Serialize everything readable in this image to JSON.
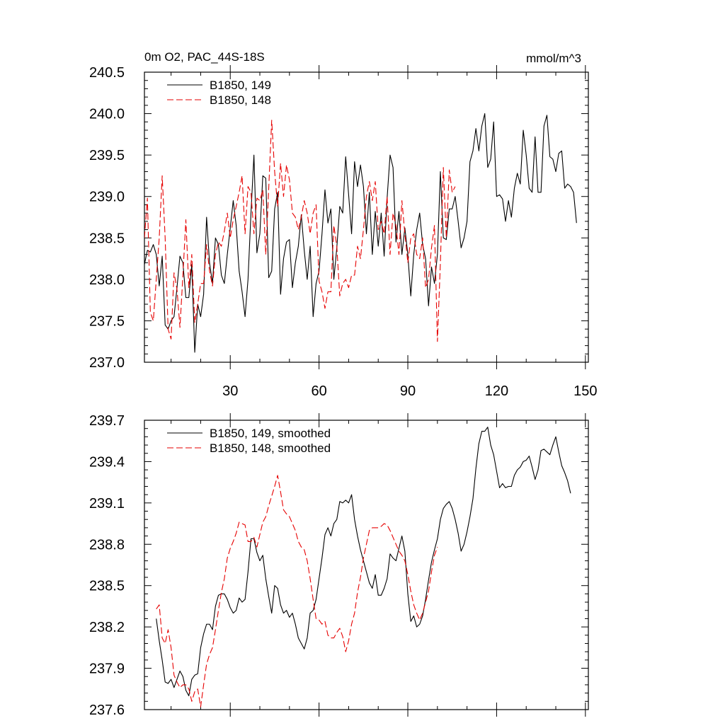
{
  "chart_data": [
    {
      "type": "line",
      "title_left": "0m O2, PAC_44S-18S",
      "title_right": "mmol/m^3",
      "xlim": [
        1,
        151
      ],
      "ylim": [
        237.0,
        240.5
      ],
      "x_ticks": [
        30,
        60,
        90,
        120,
        150
      ],
      "y_ticks": [
        "237.0",
        "237.5",
        "238.0",
        "238.5",
        "239.0",
        "239.5",
        "240.0",
        "240.5"
      ],
      "legend_position": "top-left",
      "series": [
        {
          "name": "B1850, 149",
          "color": "#000000",
          "dash": "solid",
          "x_start": 1,
          "values": [
            238.18,
            238.35,
            238.33,
            238.42,
            238.3,
            237.92,
            238.28,
            237.45,
            237.4,
            237.5,
            237.55,
            237.9,
            238.28,
            238.2,
            237.78,
            237.78,
            238.18,
            237.12,
            237.7,
            237.55,
            237.82,
            238.75,
            238.2,
            237.95,
            238.5,
            238.42,
            238.05,
            237.95,
            238.3,
            238.62,
            238.95,
            238.65,
            238.1,
            237.85,
            237.55,
            238.0,
            238.8,
            239.5,
            238.32,
            238.55,
            239.25,
            239.22,
            238.02,
            238.1,
            238.85,
            239.05,
            237.82,
            238.25,
            238.45,
            238.48,
            237.9,
            238.2,
            238.4,
            238.78,
            238.35,
            238.0,
            238.4,
            237.55,
            237.95,
            238.1,
            238.55,
            239.08,
            238.68,
            238.85,
            238.0,
            238.38,
            238.88,
            238.8,
            239.48,
            239.02,
            238.55,
            239.42,
            239.12,
            239.38,
            239.12,
            238.55,
            239.05,
            238.3,
            238.82,
            238.4,
            238.8,
            238.28,
            238.98,
            239.5,
            239.35,
            238.45,
            238.82,
            238.3,
            238.62,
            238.3,
            237.8,
            238.3,
            238.6,
            238.8,
            238.42,
            238.25,
            237.68,
            238.15,
            237.95,
            238.3,
            239.3,
            238.5,
            238.48,
            238.85,
            238.85,
            239.0,
            238.7,
            238.38,
            238.5,
            238.7,
            239.42,
            239.55,
            239.82,
            239.55,
            239.85,
            240.0,
            239.35,
            239.45,
            239.9,
            239.0,
            239.02,
            238.97,
            238.7,
            238.95,
            238.75,
            239.1,
            239.28,
            239.15,
            239.8,
            239.5,
            239.1,
            239.05,
            239.72,
            239.05,
            239.05,
            239.85,
            239.98,
            239.48,
            239.45,
            239.3,
            239.52,
            239.55,
            239.1,
            239.15,
            239.12,
            239.05,
            238.68
          ]
        },
        {
          "name": "B1850, 148",
          "color": "#e60000",
          "dash": "dashed",
          "x_start": 1,
          "values": [
            238.5,
            238.98,
            237.6,
            237.5,
            238.0,
            238.5,
            239.25,
            238.5,
            237.4,
            237.28,
            238.08,
            237.88,
            237.42,
            238.05,
            238.72,
            237.9,
            238.3,
            237.48,
            237.7,
            237.95,
            237.95,
            238.42,
            238.1,
            237.92,
            238.3,
            238.45,
            238.4,
            238.58,
            238.8,
            238.5,
            238.72,
            238.88,
            239.05,
            239.25,
            238.55,
            239.12,
            239.05,
            238.55,
            238.98,
            238.95,
            239.08,
            238.3,
            239.1,
            239.92,
            239.3,
            238.88,
            239.4,
            239.0,
            239.38,
            239.2,
            238.8,
            238.75,
            238.6,
            238.75,
            238.95,
            238.8,
            238.55,
            238.8,
            238.9,
            237.98,
            237.85,
            237.65,
            237.85,
            237.85,
            238.65,
            238.4,
            237.8,
            237.95,
            238.0,
            237.9,
            238.05,
            238.05,
            238.4,
            238.25,
            238.6,
            239.0,
            239.18,
            238.95,
            239.18,
            238.6,
            238.7,
            238.55,
            239.0,
            238.3,
            238.8,
            238.65,
            238.3,
            238.95,
            238.55,
            238.2,
            238.5,
            238.55,
            238.3,
            238.25,
            238.5,
            237.9,
            238.0,
            238.38,
            238.65,
            237.25,
            238.2,
            239.35,
            238.5,
            239.32,
            239.05,
            239.12
          ]
        }
      ]
    },
    {
      "type": "line",
      "xlim": [
        1,
        151
      ],
      "ylim": [
        237.6,
        239.7
      ],
      "x_ticks": [
        30,
        60,
        90,
        120,
        150
      ],
      "y_ticks": [
        "237.6",
        "237.9",
        "238.2",
        "238.5",
        "238.8",
        "239.1",
        "239.4",
        "239.7"
      ],
      "legend_position": "top-left",
      "series": [
        {
          "name": "B1850, 149, smoothed",
          "color": "#000000",
          "dash": "solid",
          "x_start": 5,
          "values": [
            238.26,
            238.1,
            237.96,
            237.8,
            237.79,
            237.82,
            237.76,
            237.82,
            237.88,
            237.84,
            237.74,
            237.7,
            237.82,
            237.85,
            237.86,
            238.05,
            238.15,
            238.22,
            238.22,
            238.18,
            238.35,
            238.43,
            238.44,
            238.44,
            238.4,
            238.34,
            238.3,
            238.32,
            238.41,
            238.38,
            238.4,
            238.6,
            238.84,
            238.84,
            238.74,
            238.68,
            238.72,
            238.55,
            238.42,
            238.3,
            238.5,
            238.48,
            238.36,
            238.3,
            238.32,
            238.27,
            238.3,
            238.22,
            238.12,
            238.08,
            238.04,
            238.12,
            238.3,
            238.32,
            238.4,
            238.55,
            238.7,
            238.87,
            238.92,
            238.86,
            238.95,
            238.98,
            239.11,
            239.1,
            239.12,
            239.1,
            239.16,
            238.98,
            238.86,
            238.76,
            238.68,
            238.6,
            238.52,
            238.48,
            238.58,
            238.43,
            238.43,
            238.48,
            238.55,
            238.73,
            238.7,
            238.68,
            238.77,
            238.86,
            238.75,
            238.44,
            238.24,
            238.28,
            238.2,
            238.22,
            238.28,
            238.4,
            238.54,
            238.67,
            238.76,
            238.84,
            238.98,
            239.06,
            239.09,
            239.11,
            239.06,
            238.98,
            238.88,
            238.75,
            238.8,
            238.89,
            239.0,
            239.13,
            239.35,
            239.53,
            239.62,
            239.62,
            239.65,
            239.52,
            239.45,
            239.33,
            239.21,
            239.24,
            239.21,
            239.22,
            239.22,
            239.3,
            239.34,
            239.36,
            239.4,
            239.41,
            239.44,
            239.36,
            239.27,
            239.34,
            239.48,
            239.49,
            239.47,
            239.45,
            239.52,
            239.58,
            239.47,
            239.37,
            239.32,
            239.26,
            239.17
          ]
        },
        {
          "name": "B1850, 148, smoothed",
          "color": "#e60000",
          "dash": "dashed",
          "x_start": 5,
          "values": [
            238.33,
            238.36,
            238.12,
            238.08,
            238.18,
            238.05,
            237.85,
            237.8,
            237.76,
            237.78,
            237.78,
            237.75,
            237.66,
            237.73,
            237.75,
            237.62,
            237.78,
            237.93,
            238.0,
            238.05,
            238.18,
            238.32,
            238.45,
            238.55,
            238.7,
            238.77,
            238.82,
            238.88,
            238.96,
            238.95,
            238.94,
            238.82,
            238.82,
            238.85,
            238.78,
            238.87,
            238.96,
            239.0,
            239.08,
            239.15,
            239.22,
            239.3,
            239.18,
            239.05,
            239.02,
            239.0,
            238.95,
            238.9,
            238.82,
            238.78,
            238.76,
            238.68,
            238.55,
            238.4,
            238.26,
            238.25,
            238.22,
            238.24,
            238.14,
            238.12,
            238.12,
            238.16,
            238.19,
            238.13,
            238.02,
            238.1,
            238.22,
            238.3,
            238.45,
            238.56,
            238.7,
            238.8,
            238.9,
            238.92,
            238.92,
            238.92,
            238.93,
            238.95,
            238.94,
            238.9,
            238.85,
            238.8,
            238.75,
            238.72,
            238.68,
            238.58,
            238.46,
            238.36,
            238.3,
            238.25,
            238.3,
            238.38,
            238.46,
            238.6,
            238.72,
            238.78
          ]
        }
      ]
    }
  ]
}
